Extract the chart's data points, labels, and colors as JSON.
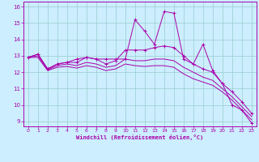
{
  "xlabel": "Windchill (Refroidissement éolien,°C)",
  "bg_color": "#cceeff",
  "line_color": "#aa00aa",
  "grid_color": "#99cccc",
  "xlim": [
    -0.5,
    23.5
  ],
  "ylim": [
    8.7,
    16.3
  ],
  "xticks": [
    0,
    1,
    2,
    3,
    4,
    5,
    6,
    7,
    8,
    9,
    10,
    11,
    12,
    13,
    14,
    15,
    16,
    17,
    18,
    19,
    20,
    21,
    22,
    23
  ],
  "yticks": [
    9,
    10,
    11,
    12,
    13,
    14,
    15,
    16
  ],
  "line1_x": [
    0,
    1,
    2,
    3,
    4,
    5,
    6,
    7,
    8,
    9,
    10,
    11,
    12,
    13,
    14,
    15,
    16,
    17,
    18,
    19,
    20,
    21,
    22,
    23
  ],
  "line1_y": [
    12.9,
    13.1,
    12.2,
    12.5,
    12.6,
    12.8,
    12.9,
    12.8,
    12.8,
    12.8,
    12.8,
    15.2,
    14.5,
    13.7,
    15.7,
    15.6,
    12.8,
    12.5,
    13.7,
    12.1,
    11.3,
    10.0,
    9.7,
    8.9
  ],
  "line2_x": [
    0,
    1,
    2,
    3,
    4,
    5,
    6,
    7,
    8,
    9,
    10,
    11,
    12,
    13,
    14,
    15,
    16,
    17,
    18,
    19,
    20,
    21,
    22,
    23
  ],
  "line2_y": [
    12.9,
    13.1,
    12.2,
    12.5,
    12.6,
    12.6,
    12.9,
    12.8,
    12.5,
    12.7,
    13.35,
    13.35,
    13.35,
    13.5,
    13.6,
    13.5,
    13.0,
    12.5,
    12.2,
    12.0,
    11.3,
    10.8,
    10.2,
    9.5
  ],
  "line3_x": [
    0,
    1,
    2,
    3,
    4,
    5,
    6,
    7,
    8,
    9,
    10,
    11,
    12,
    13,
    14,
    15,
    16,
    17,
    18,
    19,
    20,
    21,
    22,
    23
  ],
  "line3_y": [
    12.9,
    13.0,
    12.15,
    12.4,
    12.5,
    12.4,
    12.6,
    12.5,
    12.3,
    12.4,
    12.8,
    12.7,
    12.7,
    12.8,
    12.8,
    12.7,
    12.3,
    12.0,
    11.7,
    11.5,
    11.0,
    10.5,
    9.9,
    9.3
  ],
  "line4_x": [
    0,
    1,
    2,
    3,
    4,
    5,
    6,
    7,
    8,
    9,
    10,
    11,
    12,
    13,
    14,
    15,
    16,
    17,
    18,
    19,
    20,
    21,
    22,
    23
  ],
  "line4_y": [
    12.9,
    12.9,
    12.1,
    12.3,
    12.35,
    12.25,
    12.4,
    12.3,
    12.1,
    12.2,
    12.5,
    12.4,
    12.35,
    12.4,
    12.4,
    12.3,
    11.9,
    11.6,
    11.4,
    11.2,
    10.8,
    10.3,
    9.7,
    9.1
  ]
}
